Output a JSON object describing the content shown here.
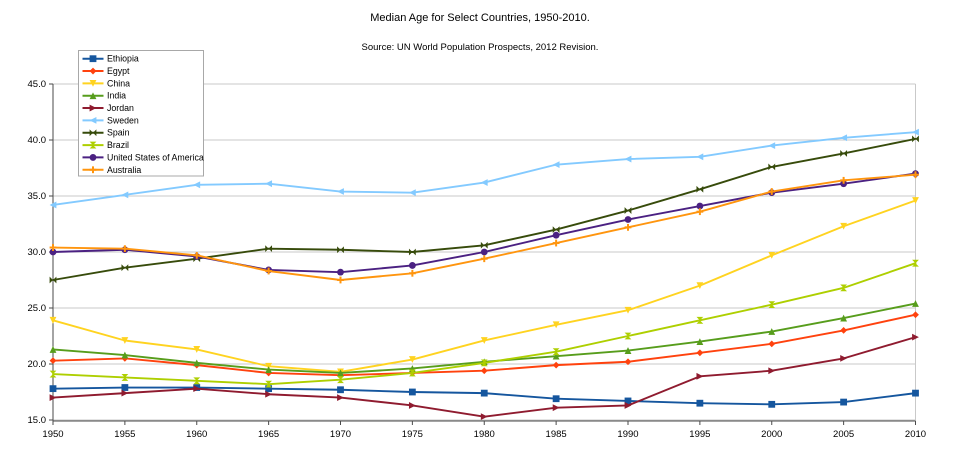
{
  "title": "Median Age for Select Countries, 1950-2010.",
  "subtitle": "Source: UN World Population Prospects, 2012 Revision.",
  "chart_data": {
    "type": "line",
    "x": [
      1950,
      1955,
      1960,
      1965,
      1970,
      1975,
      1980,
      1985,
      1990,
      1995,
      2000,
      2005,
      2010
    ],
    "x_labels": [
      "1950",
      "1955",
      "1960",
      "1965",
      "1970",
      "1975",
      "1980",
      "1985",
      "1990",
      "1995",
      "2000",
      "2005",
      "2010"
    ],
    "ylim": [
      15.0,
      45.0
    ],
    "ytick_step": 5,
    "ytick_labels": [
      "15.0",
      "20.0",
      "25.0",
      "30.0",
      "35.0",
      "40.0",
      "45.0"
    ],
    "grid": true,
    "legend_position": "top-left",
    "series": [
      {
        "name": "Ethiopia",
        "color": "#15569E",
        "marker": "square",
        "values": [
          17.8,
          17.9,
          17.9,
          17.8,
          17.7,
          17.5,
          17.4,
          16.9,
          16.7,
          16.5,
          16.4,
          16.6,
          17.4
        ]
      },
      {
        "name": "Egypt",
        "color": "#FF420E",
        "marker": "diamond",
        "values": [
          20.3,
          20.5,
          19.9,
          19.2,
          19.0,
          19.2,
          19.4,
          19.9,
          20.2,
          21.0,
          21.8,
          23.0,
          24.4
        ]
      },
      {
        "name": "China",
        "color": "#FFD320",
        "marker": "triangle-down",
        "values": [
          23.9,
          22.1,
          21.3,
          19.8,
          19.3,
          20.4,
          22.1,
          23.5,
          24.8,
          27.0,
          29.7,
          32.3,
          34.6
        ]
      },
      {
        "name": "India",
        "color": "#579D1C",
        "marker": "triangle-up",
        "values": [
          21.3,
          20.8,
          20.1,
          19.5,
          19.2,
          19.6,
          20.2,
          20.7,
          21.2,
          22.0,
          22.9,
          24.1,
          25.4
        ]
      },
      {
        "name": "Jordan",
        "color": "#8F1B2F",
        "marker": "triangle-right",
        "values": [
          17.0,
          17.4,
          17.8,
          17.3,
          17.0,
          16.3,
          15.3,
          16.1,
          16.3,
          18.9,
          19.4,
          20.5,
          22.4
        ]
      },
      {
        "name": "Sweden",
        "color": "#83CAFF",
        "marker": "triangle-left",
        "values": [
          34.2,
          35.1,
          36.0,
          36.1,
          35.4,
          35.3,
          36.2,
          37.8,
          38.3,
          38.5,
          39.5,
          40.2,
          40.7
        ]
      },
      {
        "name": "Spain",
        "color": "#374B0B",
        "marker": "bowtie",
        "values": [
          27.5,
          28.6,
          29.4,
          30.3,
          30.2,
          30.0,
          30.6,
          32.0,
          33.7,
          35.6,
          37.6,
          38.8,
          40.1
        ]
      },
      {
        "name": "Brazil",
        "color": "#AECF00",
        "marker": "hourglass",
        "values": [
          19.1,
          18.8,
          18.5,
          18.2,
          18.6,
          19.2,
          20.1,
          21.1,
          22.5,
          23.9,
          25.3,
          26.8,
          29.0
        ]
      },
      {
        "name": "United States of America",
        "color": "#4B2182",
        "marker": "circle",
        "values": [
          30.0,
          30.2,
          29.6,
          28.4,
          28.2,
          28.8,
          30.0,
          31.5,
          32.9,
          34.1,
          35.3,
          36.1,
          37.0
        ]
      },
      {
        "name": "Australia",
        "color": "#FF950E",
        "marker": "plus",
        "values": [
          30.4,
          30.3,
          29.7,
          28.3,
          27.5,
          28.1,
          29.4,
          30.8,
          32.2,
          33.6,
          35.4,
          36.4,
          36.9
        ]
      }
    ]
  },
  "styles": {
    "background": "#ffffff",
    "grid_color": "#c9c9c9",
    "axis_color": "#4a4a4a",
    "text_color": "#000000",
    "legend_border": "#a8a8a8",
    "legend_background": "#ffffff"
  }
}
